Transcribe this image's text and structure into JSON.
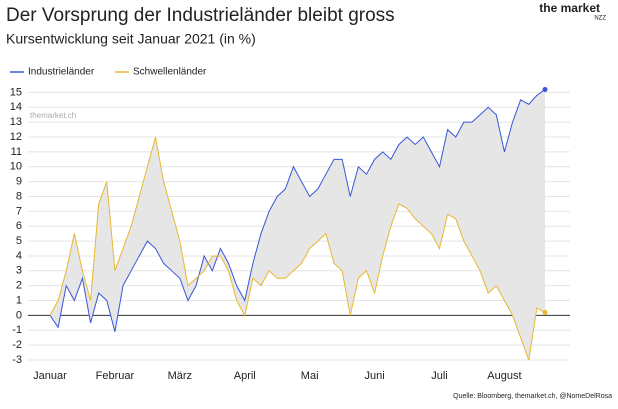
{
  "chart_data": {
    "type": "line",
    "title": "Der Vorsprung der Industrieländer bleibt gross",
    "subtitle": "Kursentwicklung seit Januar 2021 (in %)",
    "brand": "the market",
    "brand_sub": "NZZ",
    "watermark": "themarket.ch",
    "source": "Quelle: Bloomberg, themarket.ch, @NomeDelRosa",
    "categories": [
      "Januar",
      null,
      null,
      null,
      null,
      null,
      null,
      null,
      "Februar",
      null,
      null,
      null,
      null,
      null,
      null,
      null,
      "März",
      null,
      null,
      null,
      null,
      null,
      null,
      null,
      "April",
      null,
      null,
      null,
      null,
      null,
      null,
      null,
      "Mai",
      null,
      null,
      null,
      null,
      null,
      null,
      null,
      "Juni",
      null,
      null,
      null,
      null,
      null,
      null,
      null,
      "Juli",
      null,
      null,
      null,
      null,
      null,
      null,
      null,
      "August",
      null,
      null,
      null,
      null,
      null
    ],
    "series": [
      {
        "name": "Industrieländer",
        "color": "#3a55d6",
        "values": [
          0,
          -0.8,
          2,
          1,
          2.5,
          -0.5,
          1.5,
          1,
          -1.1,
          2,
          3,
          4,
          5,
          4.5,
          3.5,
          3,
          2.5,
          1,
          2,
          4,
          3,
          4.5,
          3.5,
          2,
          1,
          3.5,
          5.5,
          7,
          8,
          8.5,
          10,
          9,
          8,
          8.5,
          9.5,
          10.5,
          10.5,
          8,
          10,
          9.5,
          10.5,
          11,
          10.5,
          11.5,
          12,
          11.5,
          12,
          11,
          10,
          12.5,
          12,
          13,
          13,
          13.5,
          14,
          13.5,
          11,
          13,
          14.5,
          14.2,
          14.8,
          15.2
        ]
      },
      {
        "name": "Schwellenländer",
        "color": "#e8b830",
        "values": [
          0,
          1,
          3,
          5.5,
          3,
          1,
          7.5,
          9,
          3,
          4.5,
          6,
          8,
          10,
          12,
          9,
          7,
          5,
          2,
          2.5,
          3,
          4,
          4,
          3,
          1,
          0,
          2.5,
          2,
          3,
          2.5,
          2.5,
          3,
          3.5,
          4.5,
          5,
          5.5,
          3.5,
          3,
          0,
          2.5,
          3,
          1.5,
          4,
          6,
          7.5,
          7.2,
          6.5,
          6,
          5.5,
          4.5,
          6.8,
          6.5,
          5,
          4,
          3,
          1.5,
          2,
          1,
          0,
          -1.5,
          -3,
          0.5,
          0.2
        ]
      }
    ],
    "ylim": [
      -3,
      15.5
    ],
    "yticks": [
      -3,
      -2,
      -1,
      0,
      1,
      2,
      3,
      4,
      5,
      6,
      7,
      8,
      9,
      10,
      11,
      12,
      13,
      14,
      15
    ],
    "grid": true,
    "legend": "top-left"
  }
}
